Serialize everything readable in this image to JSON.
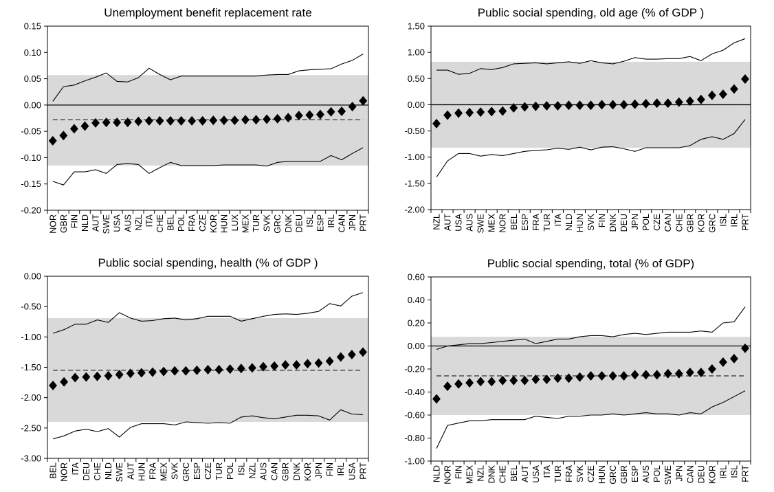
{
  "chart_data": [
    {
      "type": "scatter",
      "title": "Unemployment benefit replacement rate",
      "categories": [
        "NOR",
        "GBR",
        "FIN",
        "NLD",
        "AUT",
        "SWE",
        "USA",
        "AUS",
        "NZL",
        "ITA",
        "CHE",
        "BEL",
        "POL",
        "FRA",
        "CZE",
        "KOR",
        "HUN",
        "LUX",
        "MEX",
        "TUR",
        "SVK",
        "GRC",
        "DNK",
        "DEU",
        "ISL",
        "ESP",
        "IRL",
        "CAN",
        "JPN",
        "PRT"
      ],
      "ylim": [
        -0.2,
        0.15
      ],
      "yticks": [
        "0.15",
        "0.10",
        "0.05",
        "0.00",
        "-0.05",
        "-0.10",
        "-0.15",
        "-0.20"
      ],
      "band": [
        -0.115,
        0.057
      ],
      "mean": -0.028,
      "series": [
        {
          "role": "point",
          "values": [
            -0.068,
            -0.058,
            -0.045,
            -0.04,
            -0.034,
            -0.033,
            -0.033,
            -0.033,
            -0.031,
            -0.03,
            -0.03,
            -0.03,
            -0.03,
            -0.03,
            -0.03,
            -0.029,
            -0.029,
            -0.029,
            -0.028,
            -0.028,
            -0.027,
            -0.026,
            -0.024,
            -0.02,
            -0.019,
            -0.018,
            -0.013,
            -0.012,
            -0.003,
            0.008
          ]
        },
        {
          "role": "upper",
          "values": [
            0.007,
            0.035,
            0.038,
            0.046,
            0.053,
            0.061,
            0.045,
            0.044,
            0.052,
            0.07,
            0.058,
            0.048,
            0.055,
            0.055,
            0.055,
            0.055,
            0.055,
            0.055,
            0.055,
            0.055,
            0.057,
            0.058,
            0.058,
            0.065,
            0.067,
            0.068,
            0.069,
            0.078,
            0.085,
            0.097
          ]
        },
        {
          "role": "lower",
          "values": [
            -0.145,
            -0.152,
            -0.127,
            -0.127,
            -0.123,
            -0.13,
            -0.113,
            -0.111,
            -0.113,
            -0.13,
            -0.119,
            -0.109,
            -0.115,
            -0.115,
            -0.115,
            -0.115,
            -0.114,
            -0.114,
            -0.114,
            -0.114,
            -0.116,
            -0.109,
            -0.107,
            -0.107,
            -0.107,
            -0.107,
            -0.096,
            -0.104,
            -0.092,
            -0.081
          ]
        }
      ]
    },
    {
      "type": "scatter",
      "title": "Public social spending, old age (% of GDP )",
      "categories": [
        "NZL",
        "AUT",
        "USA",
        "AUS",
        "SWE",
        "MEX",
        "NOR",
        "BEL",
        "ESP",
        "FRA",
        "TUR",
        "ITA",
        "NLD",
        "HUN",
        "SVK",
        "FIN",
        "DNK",
        "DEU",
        "JPN",
        "POL",
        "CZE",
        "CAN",
        "CHE",
        "GBR",
        "KOR",
        "GRC",
        "ISL",
        "IRL",
        "PRT"
      ],
      "ylim": [
        -2.0,
        1.5
      ],
      "yticks": [
        "1.50",
        "1.00",
        "0.50",
        "0.00",
        "-0.50",
        "-1.00",
        "-1.50",
        "-2.00"
      ],
      "band": [
        -0.82,
        0.82
      ],
      "mean": 0.0,
      "series": [
        {
          "role": "point",
          "values": [
            -0.36,
            -0.2,
            -0.16,
            -0.15,
            -0.14,
            -0.13,
            -0.12,
            -0.06,
            -0.04,
            -0.03,
            -0.02,
            -0.02,
            -0.01,
            -0.01,
            -0.01,
            0.0,
            0.0,
            0.0,
            0.01,
            0.02,
            0.03,
            0.03,
            0.05,
            0.07,
            0.1,
            0.18,
            0.2,
            0.3,
            0.49
          ]
        },
        {
          "role": "upper",
          "values": [
            0.66,
            0.66,
            0.58,
            0.6,
            0.69,
            0.67,
            0.71,
            0.78,
            0.79,
            0.8,
            0.78,
            0.8,
            0.82,
            0.79,
            0.84,
            0.8,
            0.78,
            0.83,
            0.9,
            0.87,
            0.87,
            0.88,
            0.88,
            0.92,
            0.84,
            0.97,
            1.04,
            1.18,
            1.26
          ]
        },
        {
          "role": "lower",
          "values": [
            -1.38,
            -1.07,
            -0.93,
            -0.93,
            -0.98,
            -0.95,
            -0.97,
            -0.93,
            -0.89,
            -0.87,
            -0.86,
            -0.83,
            -0.85,
            -0.81,
            -0.86,
            -0.81,
            -0.8,
            -0.84,
            -0.89,
            -0.82,
            -0.82,
            -0.82,
            -0.82,
            -0.78,
            -0.66,
            -0.61,
            -0.66,
            -0.55,
            -0.28
          ]
        }
      ]
    },
    {
      "type": "scatter",
      "title": "Public social spending, health (% of GDP )",
      "categories": [
        "BEL",
        "NOR",
        "ITA",
        "DEU",
        "CHE",
        "NLD",
        "SWE",
        "AUT",
        "HUN",
        "FRA",
        "MEX",
        "SVK",
        "GRC",
        "ESP",
        "CZE",
        "TUR",
        "POL",
        "ISL",
        "NZL",
        "AUS",
        "CAN",
        "GBR",
        "DNK",
        "KOR",
        "JPN",
        "FIN",
        "IRL",
        "USA",
        "PRT"
      ],
      "ylim": [
        -3.0,
        0.0
      ],
      "yticks": [
        "0.00",
        "-0.50",
        "-1.00",
        "-1.50",
        "-2.00",
        "-2.50",
        "-3.00"
      ],
      "band": [
        -2.4,
        -0.69
      ],
      "mean": -1.55,
      "series": [
        {
          "role": "point",
          "values": [
            -1.8,
            -1.74,
            -1.67,
            -1.66,
            -1.65,
            -1.64,
            -1.62,
            -1.6,
            -1.59,
            -1.58,
            -1.57,
            -1.56,
            -1.56,
            -1.55,
            -1.54,
            -1.54,
            -1.53,
            -1.52,
            -1.51,
            -1.49,
            -1.48,
            -1.46,
            -1.46,
            -1.44,
            -1.43,
            -1.4,
            -1.33,
            -1.29,
            -1.25
          ]
        },
        {
          "role": "upper",
          "values": [
            -0.94,
            -0.88,
            -0.79,
            -0.79,
            -0.72,
            -0.76,
            -0.6,
            -0.69,
            -0.74,
            -0.73,
            -0.7,
            -0.69,
            -0.72,
            -0.7,
            -0.66,
            -0.66,
            -0.66,
            -0.74,
            -0.7,
            -0.66,
            -0.63,
            -0.62,
            -0.63,
            -0.61,
            -0.58,
            -0.45,
            -0.49,
            -0.33,
            -0.27
          ]
        },
        {
          "role": "lower",
          "values": [
            -2.68,
            -2.63,
            -2.55,
            -2.52,
            -2.56,
            -2.51,
            -2.65,
            -2.49,
            -2.43,
            -2.43,
            -2.43,
            -2.45,
            -2.4,
            -2.41,
            -2.42,
            -2.41,
            -2.42,
            -2.32,
            -2.3,
            -2.33,
            -2.35,
            -2.32,
            -2.29,
            -2.29,
            -2.3,
            -2.37,
            -2.2,
            -2.27,
            -2.28
          ]
        }
      ]
    },
    {
      "type": "scatter",
      "title": "Public social spending, total (% of GDP)",
      "categories": [
        "NLD",
        "NOR",
        "FIN",
        "MEX",
        "NZL",
        "DNK",
        "CHE",
        "BEL",
        "AUT",
        "USA",
        "ITA",
        "TUR",
        "FRA",
        "SVK",
        "CZE",
        "HUN",
        "GRC",
        "GBR",
        "ESP",
        "AUS",
        "POL",
        "SWE",
        "JPN",
        "CAN",
        "DEU",
        "KOR",
        "IRL",
        "ISL",
        "PRT"
      ],
      "ylim": [
        -1.0,
        0.6
      ],
      "yticks": [
        "0.60",
        "0.40",
        "0.20",
        "0.00",
        "-0.20",
        "-0.40",
        "-0.60",
        "-0.80",
        "-1.00"
      ],
      "band": [
        -0.6,
        0.08
      ],
      "mean": -0.26,
      "series": [
        {
          "role": "point",
          "values": [
            -0.46,
            -0.35,
            -0.33,
            -0.32,
            -0.31,
            -0.31,
            -0.3,
            -0.3,
            -0.3,
            -0.29,
            -0.29,
            -0.28,
            -0.28,
            -0.27,
            -0.26,
            -0.26,
            -0.26,
            -0.26,
            -0.25,
            -0.25,
            -0.25,
            -0.24,
            -0.24,
            -0.23,
            -0.23,
            -0.2,
            -0.14,
            -0.11,
            -0.02
          ]
        },
        {
          "role": "upper",
          "values": [
            -0.03,
            0.0,
            0.01,
            0.02,
            0.02,
            0.03,
            0.04,
            0.05,
            0.06,
            0.02,
            0.04,
            0.06,
            0.06,
            0.08,
            0.09,
            0.09,
            0.08,
            0.1,
            0.11,
            0.1,
            0.11,
            0.12,
            0.12,
            0.12,
            0.13,
            0.12,
            0.2,
            0.21,
            0.34
          ]
        },
        {
          "role": "lower",
          "values": [
            -0.89,
            -0.69,
            -0.67,
            -0.65,
            -0.65,
            -0.64,
            -0.64,
            -0.64,
            -0.64,
            -0.61,
            -0.62,
            -0.63,
            -0.61,
            -0.61,
            -0.6,
            -0.6,
            -0.59,
            -0.6,
            -0.59,
            -0.58,
            -0.59,
            -0.59,
            -0.6,
            -0.58,
            -0.59,
            -0.53,
            -0.49,
            -0.44,
            -0.39
          ]
        }
      ]
    }
  ]
}
